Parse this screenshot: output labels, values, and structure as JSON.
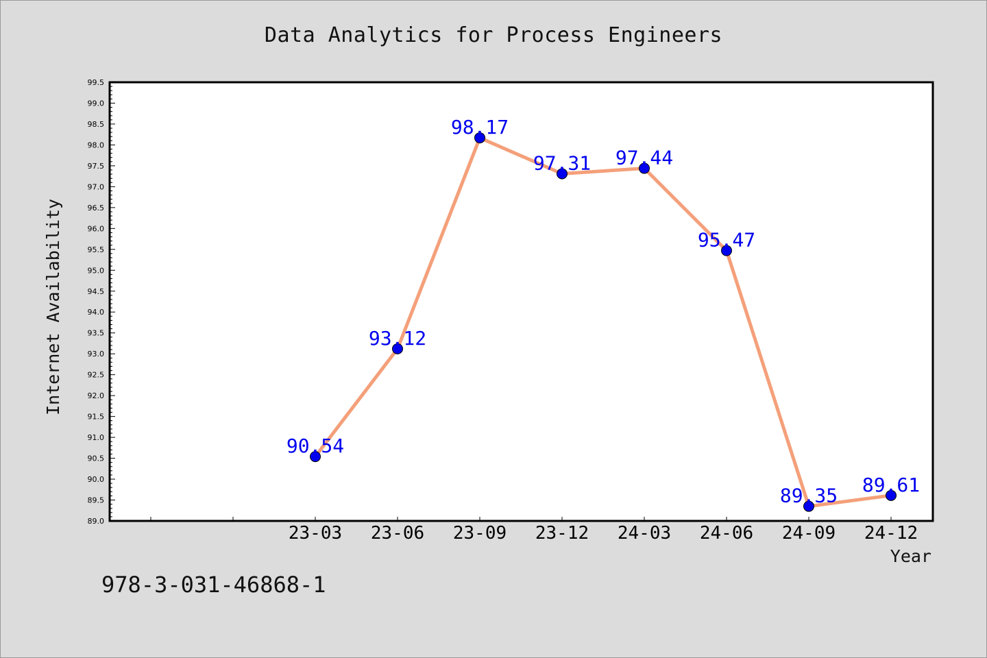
{
  "chart_data": {
    "type": "line",
    "title": "Data Analytics for Process Engineers",
    "xlabel": "Year",
    "ylabel": "Internet Availability",
    "categories": [
      "23-03",
      "23-06",
      "23-09",
      "23-12",
      "24-03",
      "24-06",
      "24-09",
      "24-12"
    ],
    "series": [
      {
        "values": [
          90.54,
          93.12,
          98.17,
          97.31,
          97.44,
          95.47,
          89.35,
          89.61
        ],
        "labels": [
          "90.54",
          "93.12",
          "98.17",
          "97.31",
          "97.44",
          "95.47",
          "89.35",
          "89.61"
        ],
        "line_color": "#f4a07a",
        "marker_color": "#0000ee",
        "label_color": "#0000ee"
      }
    ],
    "ylim": [
      89.0,
      99.5
    ],
    "y_ticks": [
      "89.0",
      "89.5",
      "90.0",
      "90.5",
      "91.0",
      "91.5",
      "92.0",
      "92.5",
      "93.0",
      "93.5",
      "94.0",
      "94.5",
      "95.0",
      "95.5",
      "96.0",
      "96.5",
      "97.0",
      "97.5",
      "98.0",
      "98.5",
      "99.0",
      "99.5"
    ],
    "grid": false,
    "legend": "none",
    "plot_background": "#ffffff",
    "page_background": "#dcdcdc"
  },
  "footer": {
    "code": "978-3-031-46868-1"
  }
}
